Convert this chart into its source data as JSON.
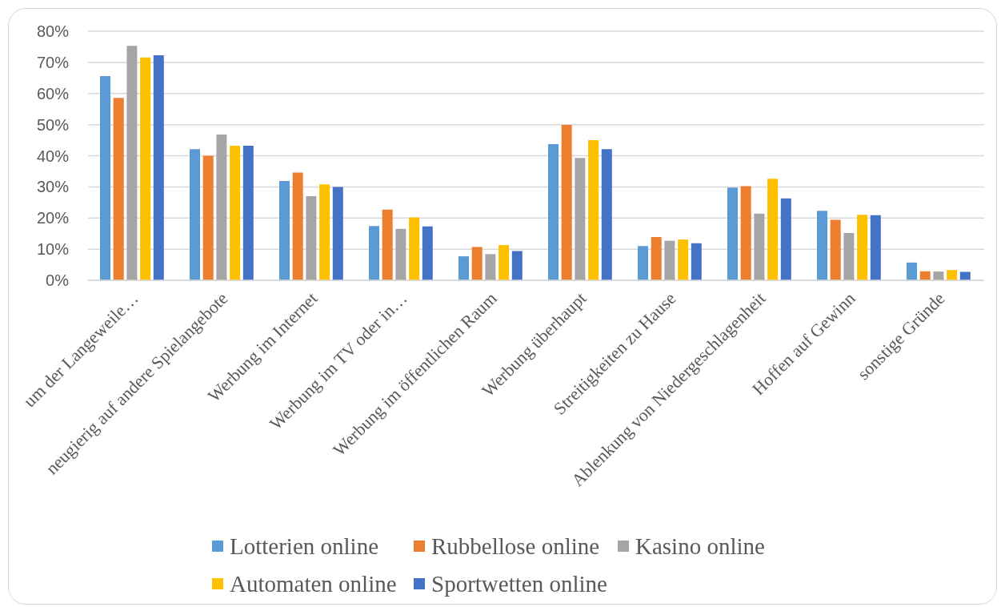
{
  "chart_data": {
    "type": "bar",
    "categories": [
      "um der Langeweile…",
      "neugierig auf andere Spielangebote",
      "Werbung im Internet",
      "Werbung im TV oder in…",
      "Werbung im öffentlichen Raum",
      "Werbung überhaupt",
      "Streitigkeiten zu Hause",
      "Ablenkung von Niedergeschlagenheit",
      "Hoffen auf Gewinn",
      "sonstige Gründe"
    ],
    "series": [
      {
        "name": "Lotterien online",
        "color": "#5b9bd5",
        "values": [
          65.6,
          42.1,
          31.9,
          17.4,
          7.7,
          43.7,
          11.0,
          29.8,
          22.3,
          5.7
        ]
      },
      {
        "name": "Rubbellose online",
        "color": "#ed7d31",
        "values": [
          58.6,
          40.0,
          34.6,
          22.7,
          10.7,
          49.9,
          13.9,
          30.2,
          19.4,
          2.9
        ]
      },
      {
        "name": "Kasino online",
        "color": "#a5a5a5",
        "values": [
          75.3,
          46.8,
          27.0,
          16.5,
          8.4,
          39.3,
          12.7,
          21.4,
          15.2,
          2.8
        ]
      },
      {
        "name": "Automaten online",
        "color": "#ffc000",
        "values": [
          71.6,
          43.2,
          30.8,
          20.2,
          11.3,
          45.0,
          13.1,
          32.6,
          21.0,
          3.3
        ]
      },
      {
        "name": "Sportwetten online",
        "color": "#4472c4",
        "values": [
          72.3,
          43.2,
          30.0,
          17.3,
          9.4,
          42.1,
          11.9,
          26.3,
          20.9,
          2.7
        ]
      }
    ],
    "ylim": [
      0,
      80
    ],
    "yticks": [
      {
        "value": 0,
        "label": "0%"
      },
      {
        "value": 10,
        "label": "10%"
      },
      {
        "value": 20,
        "label": "20%"
      },
      {
        "value": 30,
        "label": "30%"
      },
      {
        "value": 40,
        "label": "40%"
      },
      {
        "value": 50,
        "label": "50%"
      },
      {
        "value": 60,
        "label": "60%"
      },
      {
        "value": 70,
        "label": "70%"
      },
      {
        "value": 80,
        "label": "80%"
      }
    ],
    "grid": "y",
    "legend": "bottom"
  }
}
